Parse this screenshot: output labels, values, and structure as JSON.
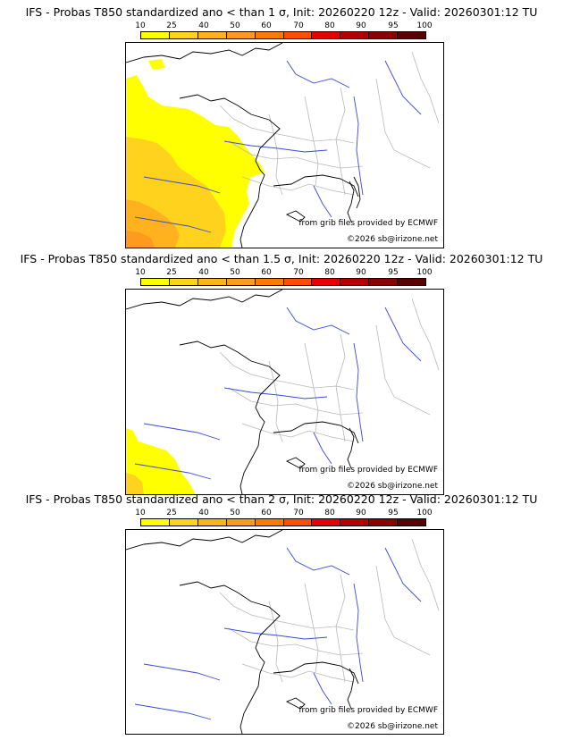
{
  "colors": {
    "scale": [
      "#ffff00",
      "#ffd21e",
      "#ffb21e",
      "#ff9a1e",
      "#ff7a00",
      "#ff4e00",
      "#e60000",
      "#b40000",
      "#8c0000",
      "#5a0000"
    ],
    "river": "#3a4ad8",
    "border": "#b9b9b9",
    "coast": "#000000"
  },
  "scale_labels": [
    "10",
    "25",
    "40",
    "50",
    "60",
    "70",
    "80",
    "90",
    "95",
    "100"
  ],
  "panels": [
    {
      "title": "IFS - Probas T850  standardized ano < than 1 σ, Init: 20260220 12z - Valid: 20260301:12 TU",
      "source_credit": "from grib files provided by ECMWF",
      "copyright": "©2026 sb@irizone.net",
      "probability_coverage": "high"
    },
    {
      "title": "IFS - Probas T850  standardized ano < than 1.5 σ, Init: 20260220 12z - Valid: 20260301:12 TU",
      "source_credit": "from grib files provided by ECMWF",
      "copyright": "©2026 sb@irizone.net",
      "probability_coverage": "low"
    },
    {
      "title": "IFS - Probas T850  standardized ano < than 2 σ, Init: 20260220 12z - Valid: 20260301:12 TU",
      "source_credit": "from grib files provided by ECMWF",
      "copyright": "©2026 sb@irizone.net",
      "probability_coverage": "none"
    }
  ]
}
